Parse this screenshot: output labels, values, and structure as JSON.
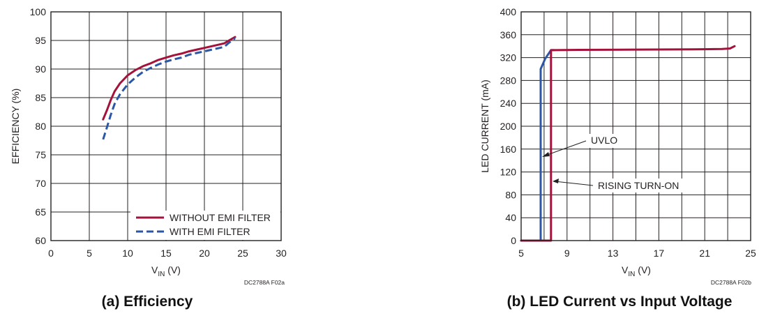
{
  "chart_data": [
    {
      "type": "line",
      "caption": "(a) Efficiency",
      "figure_code": "DC2788A F02a",
      "xlabel": "V",
      "xlabel_sub": "IN",
      "xlabel_unit": " (V)",
      "ylabel": "EFFICIENCY (%)",
      "xlim": [
        0,
        30
      ],
      "ylim": [
        60,
        100
      ],
      "xticks": [
        0,
        5,
        10,
        15,
        20,
        25,
        30
      ],
      "yticks": [
        60,
        65,
        70,
        75,
        80,
        85,
        90,
        95,
        100
      ],
      "grid": true,
      "legend_position": "bottom-right",
      "series": [
        {
          "name": "WITHOUT EMI FILTER",
          "color": "#a3123a",
          "style": "solid",
          "x": [
            6.8,
            7.3,
            7.8,
            8.3,
            9.0,
            10.0,
            11.0,
            12.0,
            13.0,
            14.0,
            15.0,
            16.0,
            17.0,
            18.0,
            19.0,
            20.0,
            21.0,
            22.0,
            22.6,
            23.2,
            24.0
          ],
          "y": [
            81.2,
            82.8,
            84.6,
            86.1,
            87.5,
            88.9,
            89.8,
            90.5,
            91.0,
            91.6,
            92.0,
            92.4,
            92.7,
            93.1,
            93.4,
            93.7,
            94.0,
            94.3,
            94.5,
            95.0,
            95.6
          ]
        },
        {
          "name": "WITH EMI FILTER",
          "color": "#2b57a5",
          "style": "dashed",
          "x": [
            6.8,
            7.3,
            7.8,
            8.3,
            9.0,
            10.0,
            11.0,
            12.0,
            13.0,
            14.0,
            15.0,
            16.0,
            17.0,
            18.0,
            19.0,
            20.0,
            21.0,
            22.0,
            22.6,
            23.2,
            24.0
          ],
          "y": [
            77.7,
            79.8,
            82.0,
            83.9,
            85.6,
            87.3,
            88.5,
            89.5,
            90.2,
            90.8,
            91.3,
            91.7,
            92.0,
            92.5,
            92.8,
            93.1,
            93.4,
            93.7,
            93.9,
            94.6,
            95.4
          ]
        }
      ]
    },
    {
      "type": "line",
      "caption": "(b) LED Current vs Input Voltage",
      "figure_code": "DC2788A F02b",
      "xlabel": "V",
      "xlabel_sub": "IN",
      "xlabel_unit": " (V)",
      "ylabel": "LED CURRENT (mA)",
      "xlim": [
        5,
        25
      ],
      "ylim": [
        0,
        400
      ],
      "xticks": [
        5,
        9,
        13,
        17,
        21,
        25
      ],
      "yticks": [
        0,
        40,
        80,
        120,
        160,
        200,
        240,
        280,
        320,
        360,
        400
      ],
      "minor_x_grid": [
        7,
        11,
        15,
        19,
        23
      ],
      "grid": true,
      "series": [
        {
          "label": "UVLO",
          "color": "#2b57a5",
          "x": [
            5.0,
            6.7,
            6.7,
            7.1,
            7.6,
            7.9
          ],
          "y": [
            0,
            0,
            300,
            318,
            333,
            333
          ]
        },
        {
          "label": "RISING TURN-ON",
          "color": "#a3123a",
          "x": [
            5.0,
            7.6,
            7.6,
            7.9,
            10.0,
            15.0,
            20.0,
            22.5,
            23.2,
            23.6
          ],
          "y": [
            0,
            0,
            333,
            333,
            333.5,
            334,
            334.5,
            335,
            336,
            340
          ]
        }
      ],
      "annotations": [
        {
          "text": "UVLO",
          "arrow_to": [
            6.75,
            148
          ]
        },
        {
          "text": "RISING TURN-ON",
          "arrow_to": [
            7.65,
            108
          ]
        }
      ]
    }
  ]
}
